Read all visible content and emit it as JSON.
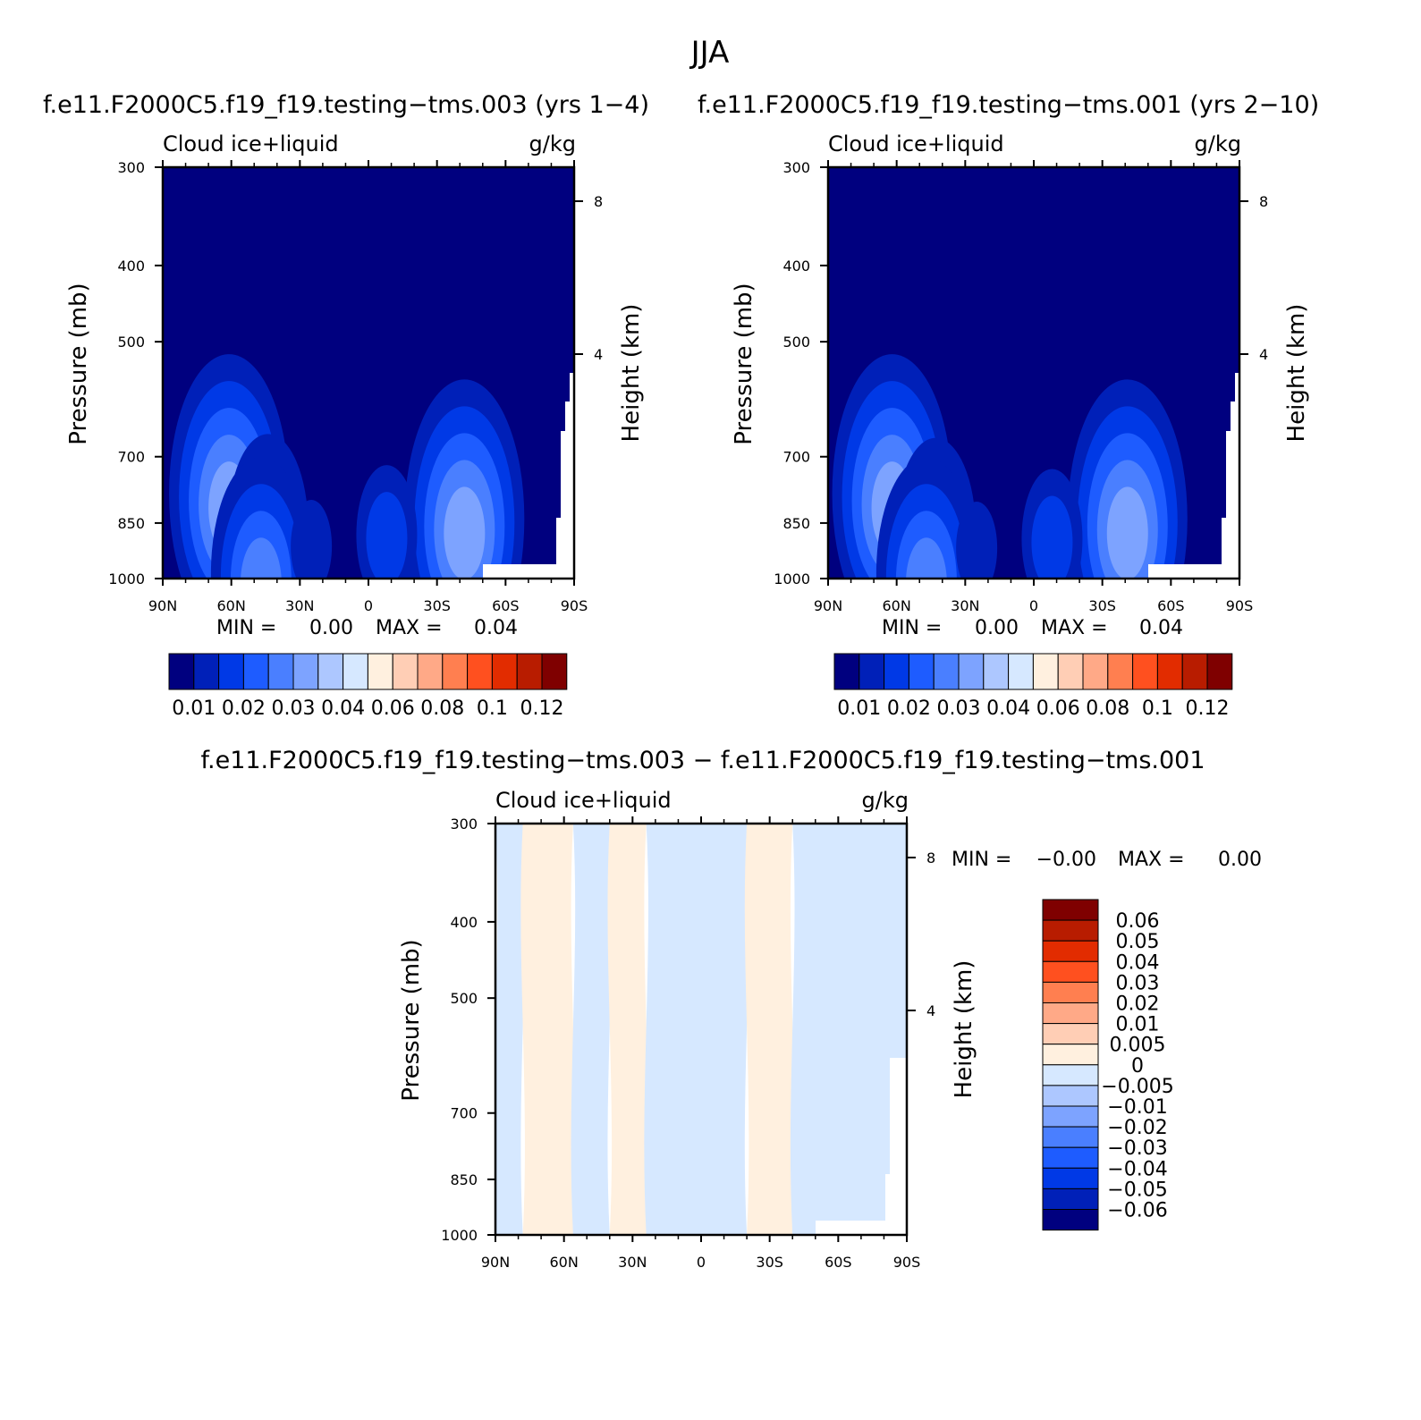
{
  "figure_title": "JJA",
  "chart_data": [
    {
      "type": "heatmap",
      "id": "top-left",
      "title": "f.e11.F2000C5.f19_f19.testing−tms.003 (yrs 1−4)",
      "left_label": "Cloud ice+liquid",
      "right_label": "g/kg",
      "ylabel": "Pressure (mb)",
      "ylabel_right": "Height (km)",
      "x_ticks": [
        "90N",
        "60N",
        "30N",
        "0",
        "30S",
        "60S",
        "90S"
      ],
      "y_ticks": [
        "300",
        "400",
        "500",
        "700",
        "850",
        "1000"
      ],
      "y_right_ticks": [
        "8",
        "4"
      ],
      "y_scale": "log",
      "ylim": [
        1000,
        300
      ],
      "min_max_text": {
        "min_label": "MIN =",
        "min_value": "0.00",
        "max_label": "MAX =",
        "max_value": "0.04"
      },
      "colorbar": {
        "orientation": "horizontal",
        "colors": [
          "#00007f",
          "#0020b8",
          "#0039e6",
          "#1e5cff",
          "#4a7fff",
          "#7da3ff",
          "#adc7ff",
          "#d6e8ff",
          "#fff0df",
          "#ffceb5",
          "#ffa987",
          "#ff7f50",
          "#ff501f",
          "#e22c00",
          "#b81c00",
          "#7f0000"
        ],
        "labels": [
          "0.01",
          "0.02",
          "0.03",
          "0.04",
          "0.06",
          "0.08",
          "0.1",
          "0.12"
        ]
      },
      "highlights": [
        {
          "lat": 61,
          "p": 780,
          "level": 5
        },
        {
          "lat": 44,
          "p": 860,
          "level": 3
        },
        {
          "lat": 47,
          "p": 985,
          "level": 4
        },
        {
          "lat": -42,
          "p": 840,
          "level": 5
        },
        {
          "lat": -8,
          "p": 880,
          "level": 2
        },
        {
          "lat": 25,
          "p": 910,
          "level": 1
        }
      ]
    },
    {
      "type": "heatmap",
      "id": "top-right",
      "title": "f.e11.F2000C5.f19_f19.testing−tms.001 (yrs 2−10)",
      "left_label": "Cloud ice+liquid",
      "right_label": "g/kg",
      "ylabel": "Pressure (mb)",
      "ylabel_right": "Height (km)",
      "x_ticks": [
        "90N",
        "60N",
        "30N",
        "0",
        "30S",
        "60S",
        "90S"
      ],
      "y_ticks": [
        "300",
        "400",
        "500",
        "700",
        "850",
        "1000"
      ],
      "y_right_ticks": [
        "8",
        "4"
      ],
      "y_scale": "log",
      "ylim": [
        1000,
        300
      ],
      "min_max_text": {
        "min_label": "MIN =",
        "min_value": "0.00",
        "max_label": "MAX =",
        "max_value": "0.04"
      },
      "colorbar": {
        "orientation": "horizontal",
        "colors": [
          "#00007f",
          "#0020b8",
          "#0039e6",
          "#1e5cff",
          "#4a7fff",
          "#7da3ff",
          "#adc7ff",
          "#d6e8ff",
          "#fff0df",
          "#ffceb5",
          "#ffa987",
          "#ff7f50",
          "#ff501f",
          "#e22c00",
          "#b81c00",
          "#7f0000"
        ],
        "labels": [
          "0.01",
          "0.02",
          "0.03",
          "0.04",
          "0.06",
          "0.08",
          "0.1",
          "0.12"
        ]
      },
      "highlights": [
        {
          "lat": 62,
          "p": 780,
          "level": 5
        },
        {
          "lat": 43,
          "p": 870,
          "level": 3
        },
        {
          "lat": 47,
          "p": 985,
          "level": 4
        },
        {
          "lat": -41,
          "p": 840,
          "level": 5
        },
        {
          "lat": -8,
          "p": 890,
          "level": 2
        },
        {
          "lat": 25,
          "p": 915,
          "level": 1
        }
      ]
    },
    {
      "type": "heatmap",
      "id": "difference",
      "title": "f.e11.F2000C5.f19_f19.testing−tms.003 − f.e11.F2000C5.f19_f19.testing−tms.001",
      "left_label": "Cloud ice+liquid",
      "right_label": "g/kg",
      "ylabel": "Pressure (mb)",
      "ylabel_right": "Height (km)",
      "x_ticks": [
        "90N",
        "60N",
        "30N",
        "0",
        "30S",
        "60S",
        "90S"
      ],
      "y_ticks": [
        "300",
        "400",
        "500",
        "700",
        "850",
        "1000"
      ],
      "y_right_ticks": [
        "8",
        "4"
      ],
      "y_scale": "log",
      "ylim": [
        1000,
        300
      ],
      "min_max_text": {
        "min_label": "MIN =",
        "min_value": "−0.00",
        "max_label": "MAX =",
        "max_value": "0.00"
      },
      "colorbar": {
        "orientation": "vertical",
        "colors": [
          "#00007f",
          "#0020b8",
          "#0039e6",
          "#1e5cff",
          "#4a7fff",
          "#7da3ff",
          "#adc7ff",
          "#d6e8ff",
          "#fff0df",
          "#ffceb5",
          "#ffa987",
          "#ff7f50",
          "#ff501f",
          "#e22c00",
          "#b81c00",
          "#7f0000"
        ],
        "labels": [
          "−0.06",
          "−0.05",
          "−0.04",
          "−0.03",
          "−0.02",
          "−0.01",
          "−0.005",
          "0",
          "0.005",
          "0.01",
          "0.02",
          "0.03",
          "0.04",
          "0.05",
          "0.06"
        ]
      },
      "bands": [
        {
          "lat_from": 90,
          "lat_to": 78,
          "sign": "neg"
        },
        {
          "lat_from": 78,
          "lat_to": 56,
          "sign": "pos"
        },
        {
          "lat_from": 56,
          "lat_to": 40,
          "sign": "neg"
        },
        {
          "lat_from": 40,
          "lat_to": 24,
          "sign": "pos"
        },
        {
          "lat_from": 24,
          "lat_to": -20,
          "sign": "neg"
        },
        {
          "lat_from": -20,
          "lat_to": -40,
          "sign": "pos"
        },
        {
          "lat_from": -40,
          "lat_to": -90,
          "sign": "neg"
        }
      ]
    }
  ]
}
